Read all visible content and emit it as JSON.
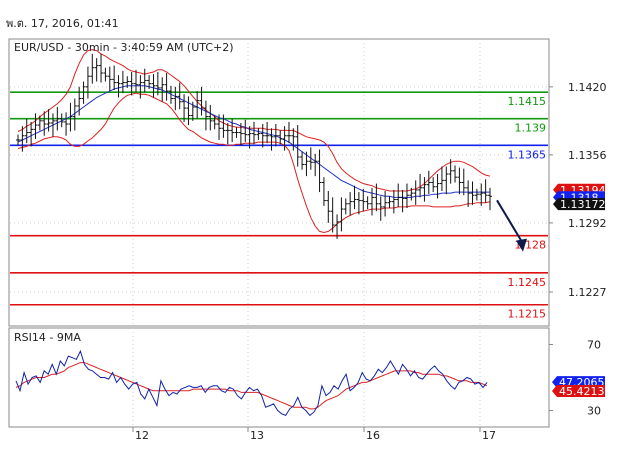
{
  "header": {
    "timestamp": "พ.ต. 17, 2016, 01:41"
  },
  "chart_data": [
    {
      "type": "candlestick",
      "title": "EUR/USD - 30min - 3:40:59 AM (UTC+2)",
      "x_tick_labels": [
        "12",
        "13",
        "16",
        "17"
      ],
      "y_tick_labels": [
        "1.1420",
        "1.1356",
        "1.1292",
        "1.1227"
      ],
      "ylim": [
        1.1195,
        1.1465
      ],
      "levels": [
        {
          "label": "1.1415",
          "value": 1.1415,
          "color": "#119911"
        },
        {
          "label": "1.139",
          "value": 1.139,
          "color": "#119911"
        },
        {
          "label": "1.1365",
          "value": 1.1365,
          "color": "#1122ee"
        },
        {
          "label": "1.128",
          "value": 1.128,
          "color": "#dd1111"
        },
        {
          "label": "1.1245",
          "value": 1.1245,
          "color": "#dd1111"
        },
        {
          "label": "1.1215",
          "value": 1.1215,
          "color": "#dd1111"
        }
      ],
      "price_tags": [
        {
          "label": "1.13194",
          "value": 1.13194,
          "bg": "#dd1111"
        },
        {
          "label": "1.1318",
          "value": 1.1318,
          "bg": "#1122ee"
        },
        {
          "label": "1.13172",
          "value": 1.13172,
          "bg": "#111111"
        }
      ],
      "arrow": {
        "from": [
          238,
          1.1317
        ],
        "to": [
          258,
          1.1265
        ]
      },
      "close_values": [
        1.137,
        1.1374,
        1.1377,
        1.138,
        1.1384,
        1.1388,
        1.1385,
        1.1386,
        1.1388,
        1.139,
        1.1387,
        1.1385,
        1.1392,
        1.1402,
        1.1409,
        1.142,
        1.143,
        1.1438,
        1.144,
        1.1433,
        1.143,
        1.1427,
        1.1424,
        1.1423,
        1.1424,
        1.1425,
        1.1423,
        1.1422,
        1.1424,
        1.1426,
        1.1423,
        1.1421,
        1.1419,
        1.1422,
        1.1416,
        1.1409,
        1.1411,
        1.1406,
        1.14,
        1.1393,
        1.1401,
        1.1407,
        1.14,
        1.1392,
        1.1388,
        1.1385,
        1.1381,
        1.1379,
        1.1379,
        1.1377,
        1.1377,
        1.1376,
        1.1375,
        1.1376,
        1.1375,
        1.1376,
        1.1374,
        1.1374,
        1.1373,
        1.1374,
        1.1371,
        1.1374,
        1.1374,
        1.1373,
        1.1354,
        1.1347,
        1.135,
        1.1349,
        1.135,
        1.133,
        1.1313,
        1.1303,
        1.129,
        1.1293,
        1.1305,
        1.131,
        1.1312,
        1.1314,
        1.1313,
        1.1312,
        1.131,
        1.1316,
        1.131,
        1.1307,
        1.1311,
        1.1312,
        1.1314,
        1.1316,
        1.1315,
        1.1318,
        1.132,
        1.1323,
        1.1325,
        1.1328,
        1.133,
        1.1326,
        1.1329,
        1.1332,
        1.1338,
        1.1341,
        1.1335,
        1.133,
        1.1325,
        1.132,
        1.1318,
        1.1319,
        1.132,
        1.1318,
        1.1317
      ],
      "upper_band": [
        1.1378,
        1.138,
        1.1383,
        1.1385,
        1.1388,
        1.1392,
        1.1395,
        1.1398,
        1.1401,
        1.1404,
        1.1408,
        1.1413,
        1.142,
        1.1432,
        1.1442,
        1.145,
        1.1454,
        1.1455,
        1.1454,
        1.1451,
        1.1449,
        1.1446,
        1.1444,
        1.1442,
        1.144,
        1.1437,
        1.1435,
        1.1434,
        1.1433,
        1.1432,
        1.1433,
        1.1434,
        1.1436,
        1.1436,
        1.1434,
        1.1431,
        1.1428,
        1.1425,
        1.1421,
        1.1416,
        1.1411,
        1.1406,
        1.1402,
        1.1398,
        1.1395,
        1.1392,
        1.1388,
        1.1386,
        1.1384,
        1.1383,
        1.1382,
        1.1382,
        1.1381,
        1.1381,
        1.1381,
        1.1381,
        1.1381,
        1.138,
        1.138,
        1.138,
        1.1379,
        1.1379,
        1.1379,
        1.1379,
        1.1377,
        1.1375,
        1.1373,
        1.1372,
        1.1371,
        1.137,
        1.1368,
        1.1364,
        1.1357,
        1.1349,
        1.1343,
        1.1339,
        1.1336,
        1.1333,
        1.1331,
        1.1329,
        1.1328,
        1.1327,
        1.1325,
        1.1324,
        1.1323,
        1.1322,
        1.1322,
        1.1322,
        1.1322,
        1.1322,
        1.1323,
        1.1324,
        1.1326,
        1.1329,
        1.1333,
        1.1337,
        1.1341,
        1.1344,
        1.1347,
        1.1349,
        1.135,
        1.135,
        1.1349,
        1.1347,
        1.1345,
        1.1342,
        1.1339,
        1.1337,
        1.1336
      ],
      "lower_band": [
        1.1362,
        1.1363,
        1.1364,
        1.1366,
        1.1367,
        1.1369,
        1.1371,
        1.1372,
        1.1373,
        1.1373,
        1.1372,
        1.137,
        1.1366,
        1.1364,
        1.1364,
        1.1366,
        1.1369,
        1.1372,
        1.1376,
        1.138,
        1.1385,
        1.1393,
        1.14,
        1.1405,
        1.1409,
        1.1412,
        1.1413,
        1.1414,
        1.1413,
        1.1413,
        1.1412,
        1.141,
        1.1408,
        1.1406,
        1.1404,
        1.14,
        1.1395,
        1.1389,
        1.1384,
        1.138,
        1.1378,
        1.1375,
        1.1372,
        1.137,
        1.1368,
        1.1367,
        1.1366,
        1.1366,
        1.1365,
        1.1365,
        1.1366,
        1.1366,
        1.1367,
        1.1367,
        1.1367,
        1.1368,
        1.1368,
        1.1368,
        1.1368,
        1.1368,
        1.1367,
        1.1365,
        1.136,
        1.1348,
        1.1333,
        1.132,
        1.1308,
        1.1297,
        1.1289,
        1.1284,
        1.1283,
        1.1284,
        1.1287,
        1.1291,
        1.1294,
        1.1297,
        1.1299,
        1.1301,
        1.1302,
        1.1303,
        1.1304,
        1.1305,
        1.1305,
        1.1305,
        1.1306,
        1.1306,
        1.1306,
        1.1307,
        1.1307,
        1.1307,
        1.1308,
        1.1308,
        1.1308,
        1.1308,
        1.1308,
        1.1307,
        1.1307,
        1.1307,
        1.1307,
        1.1307,
        1.1308,
        1.1308,
        1.1309,
        1.131,
        1.131,
        1.1311,
        1.1311,
        1.1311,
        1.1312
      ],
      "ma": [
        1.1368,
        1.137,
        1.1372,
        1.1374,
        1.1376,
        1.1378,
        1.138,
        1.1382,
        1.1384,
        1.1386,
        1.1388,
        1.139,
        1.1392,
        1.1395,
        1.1398,
        1.1401,
        1.1404,
        1.1407,
        1.141,
        1.1412,
        1.1414,
        1.1416,
        1.1418,
        1.1419,
        1.142,
        1.1421,
        1.1421,
        1.1421,
        1.1421,
        1.1421,
        1.142,
        1.1419,
        1.1418,
        1.1417,
        1.1415,
        1.1413,
        1.1411,
        1.1409,
        1.1407,
        1.1405,
        1.1403,
        1.1401,
        1.1399,
        1.1397,
        1.1395,
        1.1393,
        1.1391,
        1.139,
        1.1388,
        1.1386,
        1.1385,
        1.1383,
        1.1382,
        1.138,
        1.1379,
        1.1378,
        1.1377,
        1.1376,
        1.1375,
        1.1374,
        1.1372,
        1.137,
        1.1368,
        1.1365,
        1.1362,
        1.1359,
        1.1356,
        1.1353,
        1.135,
        1.1347,
        1.1344,
        1.1341,
        1.1338,
        1.1335,
        1.1332,
        1.133,
        1.1328,
        1.1326,
        1.1324,
        1.1322,
        1.1321,
        1.132,
        1.1319,
        1.1318,
        1.1317,
        1.1317,
        1.1316,
        1.1316,
        1.1316,
        1.1316,
        1.1316,
        1.1317,
        1.1317,
        1.1318,
        1.1318,
        1.1319,
        1.1319,
        1.132,
        1.132,
        1.132,
        1.1321,
        1.1321,
        1.1321,
        1.1321,
        1.1321,
        1.1321,
        1.1321,
        1.1321,
        1.1321
      ]
    },
    {
      "type": "line",
      "title": "RSI14 - 9MA",
      "y_tick_labels": [
        "70",
        "30"
      ],
      "ylim": [
        20,
        80
      ],
      "current_tags": [
        {
          "label": "47.2065",
          "value": 47.2065,
          "bg": "#1122ee"
        },
        {
          "label": "45.4213",
          "value": 45.4213,
          "bg": "#dd1111"
        }
      ],
      "series": [
        {
          "values": [
            48,
            42,
            53,
            46,
            50,
            51,
            47,
            54,
            52,
            58,
            52,
            60,
            57,
            63,
            62,
            61,
            66,
            58,
            55,
            54,
            52,
            50,
            50,
            49,
            53,
            47,
            50,
            46,
            43,
            46,
            47,
            40,
            37,
            43,
            38,
            33,
            48,
            43,
            39,
            41,
            40,
            43,
            44,
            45,
            44,
            44,
            45,
            41,
            44,
            45,
            45,
            42,
            41,
            44,
            43,
            39,
            37,
            41,
            44,
            42,
            43,
            39,
            32,
            33,
            34,
            30,
            28,
            27,
            31,
            33,
            38,
            32,
            30,
            27,
            29,
            33,
            45,
            39,
            41,
            45,
            43,
            48,
            52,
            42,
            44,
            47,
            53,
            49,
            48,
            51,
            55,
            53,
            56,
            60,
            56,
            52,
            58,
            55,
            51,
            54,
            50,
            49,
            52,
            55,
            57,
            54,
            52,
            48,
            45,
            43,
            47,
            48,
            50,
            49,
            46,
            47,
            44,
            47
          ]
        },
        {
          "values": [
            44,
            45,
            47,
            48,
            49,
            50,
            50,
            50,
            51,
            52,
            52,
            53,
            54,
            56,
            57,
            58,
            59,
            59,
            58,
            57,
            56,
            55,
            54,
            53,
            52,
            51,
            50,
            49,
            48,
            47,
            46,
            45,
            44,
            43,
            42,
            42,
            42,
            42,
            42,
            42,
            42,
            42,
            42,
            42,
            43,
            43,
            43,
            43,
            43,
            43,
            43,
            43,
            43,
            42,
            42,
            42,
            41,
            41,
            41,
            41,
            41,
            40,
            39,
            38,
            37,
            36,
            35,
            34,
            33,
            32,
            32,
            32,
            32,
            31,
            31,
            32,
            34,
            36,
            37,
            38,
            39,
            41,
            43,
            44,
            45,
            46,
            47,
            47,
            48,
            49,
            50,
            51,
            52,
            53,
            54,
            54,
            54,
            54,
            54,
            53,
            53,
            52,
            52,
            52,
            52,
            52,
            51,
            51,
            50,
            49,
            48,
            48,
            48,
            47,
            47,
            47,
            46,
            45
          ]
        }
      ]
    }
  ]
}
